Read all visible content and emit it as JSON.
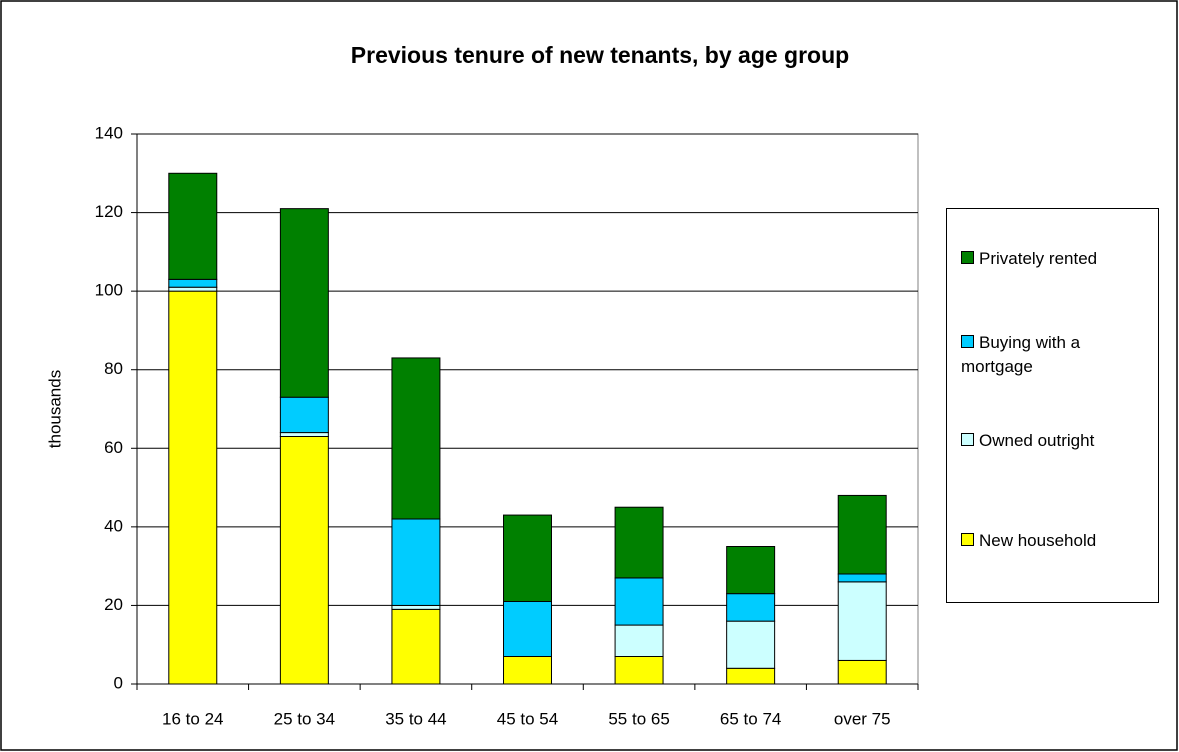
{
  "chart_data": {
    "type": "stacked_bar",
    "title": "Previous tenure of new tenants, by age group",
    "y_label": "thousands",
    "categories": [
      "16 to 24",
      "25 to 34",
      "35 to 44",
      "45 to 54",
      "55 to 65",
      "65 to 74",
      "over 75"
    ],
    "series": [
      {
        "name": "New household",
        "color": "#ffff00",
        "values": [
          100,
          63,
          19,
          7,
          7,
          4,
          6
        ]
      },
      {
        "name": "Owned outright",
        "color": "#ccffff",
        "values": [
          1,
          1,
          1,
          0,
          8,
          12,
          20
        ]
      },
      {
        "name": "Buying with a mortgage",
        "color": "#00ccff",
        "values": [
          2,
          9,
          22,
          14,
          12,
          7,
          2
        ]
      },
      {
        "name": "Privately rented",
        "color": "#008000",
        "values": [
          27,
          48,
          41,
          22,
          18,
          12,
          20
        ]
      }
    ],
    "ylim": [
      0,
      140
    ],
    "yticks": [
      0,
      20,
      40,
      60,
      80,
      100,
      120,
      140
    ],
    "grid": true,
    "legend": "right"
  }
}
